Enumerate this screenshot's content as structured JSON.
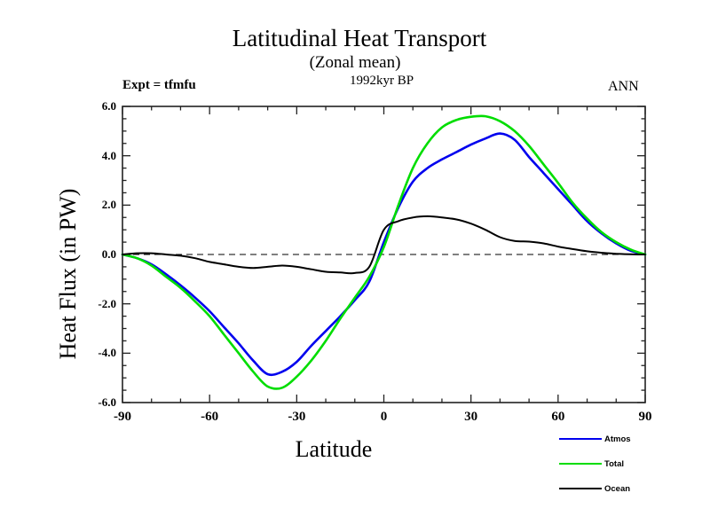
{
  "header": {
    "title": "Latitudinal Heat Transport",
    "subtitle": "(Zonal mean)",
    "date_label": "1992kyr BP",
    "experiment_label": "Expt = tfmfu",
    "season_label": "ANN"
  },
  "chart_data": {
    "type": "line",
    "title": "Latitudinal Heat Transport",
    "subtitle": "(Zonal mean)",
    "annotation": "1992kyr BP",
    "experiment": "Expt = tfmfu",
    "season": "ANN",
    "xlabel": "Latitude",
    "ylabel": "Heat Flux (in PW)",
    "xlim": [
      -90,
      90
    ],
    "ylim": [
      -6,
      6
    ],
    "grid": false,
    "zero_line": {
      "style": "dashed",
      "color": "#000000",
      "y": 0
    },
    "axis_color": "#222222",
    "x_ticks": [
      {
        "value": -90,
        "label": "-90"
      },
      {
        "value": -60,
        "label": "-60"
      },
      {
        "value": -30,
        "label": "-30"
      },
      {
        "value": 0,
        "label": "0"
      },
      {
        "value": 30,
        "label": "30"
      },
      {
        "value": 60,
        "label": "60"
      },
      {
        "value": 90,
        "label": "90"
      }
    ],
    "x_minor_step": 10,
    "y_ticks": [
      {
        "value": 6,
        "label": "6.0"
      },
      {
        "value": 4,
        "label": "4.0"
      },
      {
        "value": 2,
        "label": "2.0"
      },
      {
        "value": 0,
        "label": "0.0"
      },
      {
        "value": -2,
        "label": "-2.0"
      },
      {
        "value": -4,
        "label": "-4.0"
      },
      {
        "value": -6,
        "label": "-6.0"
      }
    ],
    "y_minor_step": 0.5,
    "legend_position": "bottom-right",
    "x": [
      -90,
      -85,
      -80,
      -75,
      -70,
      -65,
      -60,
      -55,
      -50,
      -45,
      -40,
      -35,
      -30,
      -25,
      -20,
      -15,
      -10,
      -5,
      0,
      5,
      10,
      15,
      20,
      25,
      30,
      35,
      40,
      45,
      50,
      55,
      60,
      65,
      70,
      75,
      80,
      85,
      90
    ],
    "series": [
      {
        "name": "Atmos",
        "color": "#0000ee",
        "width": 2.6,
        "values": [
          0,
          -0.15,
          -0.4,
          -0.8,
          -1.25,
          -1.75,
          -2.3,
          -2.95,
          -3.6,
          -4.3,
          -4.85,
          -4.75,
          -4.35,
          -3.7,
          -3.1,
          -2.5,
          -1.85,
          -1.1,
          0.5,
          1.9,
          2.95,
          3.5,
          3.85,
          4.15,
          4.45,
          4.7,
          4.9,
          4.65,
          3.95,
          3.3,
          2.65,
          2.0,
          1.35,
          0.85,
          0.45,
          0.15,
          0
        ]
      },
      {
        "name": "Total",
        "color": "#00dd00",
        "width": 2.6,
        "values": [
          0,
          -0.15,
          -0.45,
          -0.9,
          -1.35,
          -1.9,
          -2.5,
          -3.25,
          -4.0,
          -4.75,
          -5.35,
          -5.4,
          -4.95,
          -4.3,
          -3.5,
          -2.6,
          -1.75,
          -0.9,
          0.3,
          2.0,
          3.5,
          4.5,
          5.15,
          5.45,
          5.58,
          5.6,
          5.4,
          5.0,
          4.4,
          3.65,
          2.9,
          2.1,
          1.45,
          0.9,
          0.5,
          0.2,
          0
        ]
      },
      {
        "name": "Ocean",
        "color": "#000000",
        "width": 2.0,
        "values": [
          0,
          0.05,
          0.05,
          0,
          -0.05,
          -0.15,
          -0.3,
          -0.4,
          -0.5,
          -0.55,
          -0.5,
          -0.45,
          -0.5,
          -0.6,
          -0.7,
          -0.73,
          -0.75,
          -0.5,
          1.0,
          1.35,
          1.5,
          1.55,
          1.5,
          1.42,
          1.25,
          1.0,
          0.7,
          0.55,
          0.52,
          0.45,
          0.32,
          0.22,
          0.13,
          0.07,
          0.03,
          0.01,
          0
        ]
      }
    ]
  }
}
